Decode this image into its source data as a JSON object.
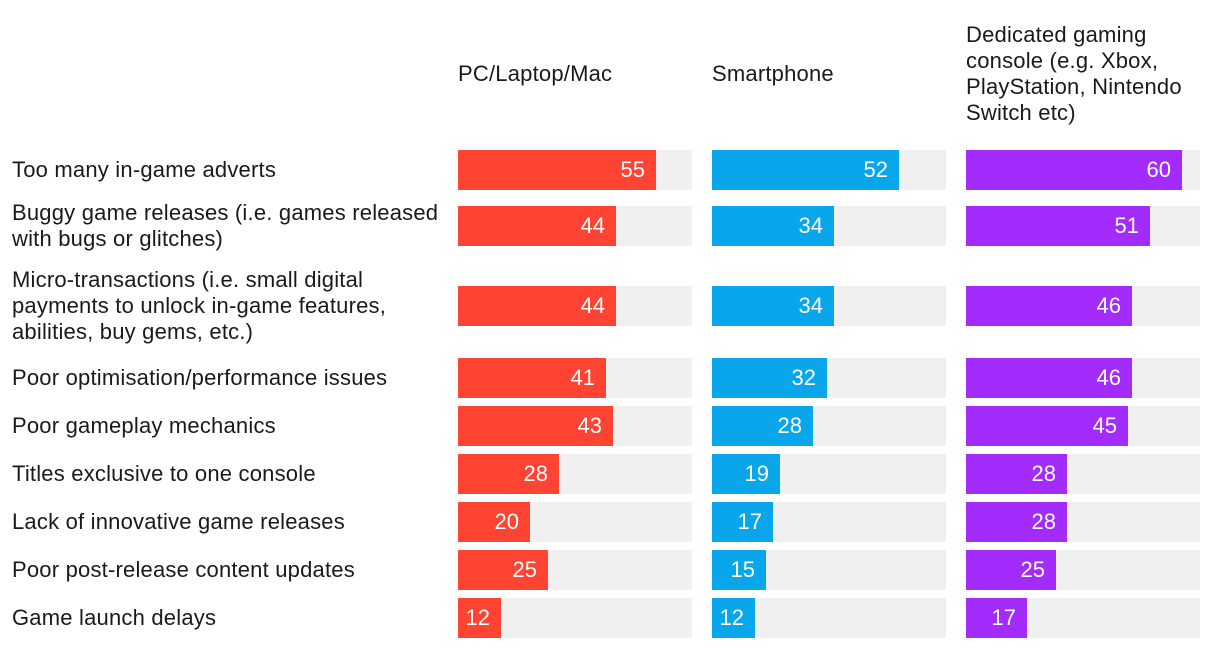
{
  "chart_data": {
    "type": "bar",
    "orientation": "horizontal",
    "title": "",
    "xlim": [
      0,
      65
    ],
    "categories": [
      "Too many in-game adverts",
      "Buggy game releases (i.e. games released with bugs or glitches)",
      "Micro-transactions (i.e. small digital payments to unlock in-game features, abilities, buy gems, etc.)",
      "Poor optimisation/performance issues",
      "Poor gameplay mechanics",
      "Titles exclusive to one console",
      "Lack of innovative game releases",
      "Poor post-release content updates",
      "Game launch delays"
    ],
    "series": [
      {
        "name": "PC/Laptop/Mac",
        "color": "#ff4433",
        "values": [
          55,
          44,
          44,
          41,
          43,
          28,
          20,
          25,
          12
        ]
      },
      {
        "name": "Smartphone",
        "color": "#0aa6ec",
        "values": [
          52,
          34,
          34,
          32,
          28,
          19,
          17,
          15,
          12
        ]
      },
      {
        "name": "Dedicated gaming console (e.g. Xbox, PlayStation, Nintendo Switch etc)",
        "color": "#a32cfc",
        "values": [
          60,
          51,
          46,
          46,
          45,
          28,
          28,
          25,
          17
        ]
      }
    ]
  }
}
